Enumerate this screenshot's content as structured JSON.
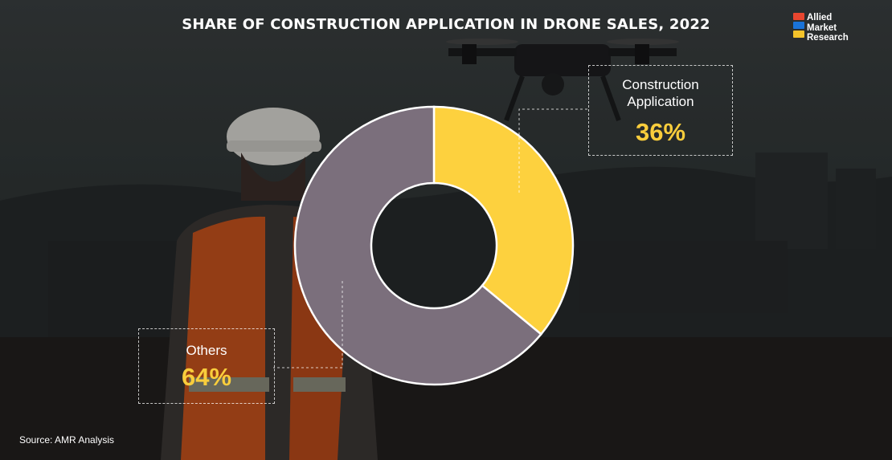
{
  "title": "SHARE OF CONSTRUCTION APPLICATION IN DRONE SALES, 2022",
  "logo": {
    "line1": "Allied",
    "line2": "Market",
    "line3": "Research",
    "colors": [
      "#e8462f",
      "#1a73d9",
      "#f4c32a"
    ]
  },
  "source": "Source: AMR Analysis",
  "colors": {
    "construction": "#fdd13e",
    "others": "#7b6f7c",
    "percent_text": "#f9cd3c"
  },
  "chart_data": {
    "type": "pie",
    "title": "SHARE OF CONSTRUCTION APPLICATION IN DRONE SALES, 2022",
    "labels": [
      "Construction Application",
      "Others"
    ],
    "values": [
      36,
      64
    ],
    "value_labels": [
      "36%",
      "64%"
    ],
    "colors": [
      "#fdd13e",
      "#7b6f7c"
    ],
    "donut": true,
    "legend": "callouts"
  }
}
